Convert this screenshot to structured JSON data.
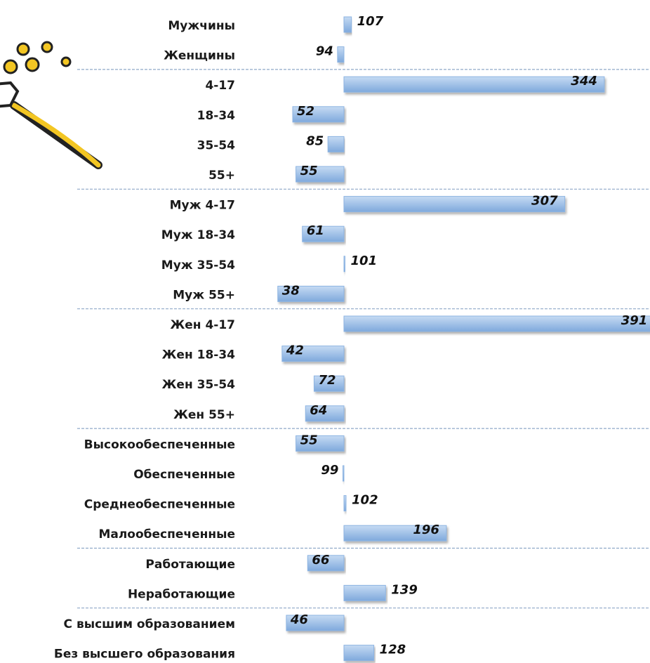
{
  "chart_data": {
    "type": "bar",
    "orientation": "horizontal",
    "baseline": 100,
    "xlim": [
      30,
      400
    ],
    "color": "#8db4e2",
    "categories": [
      "Мужчины",
      "Женщины",
      "4-17",
      "18-34",
      "35-54",
      "55+",
      "Муж 4-17",
      "Муж 18-34",
      "Муж 35-54",
      "Муж 55+",
      "Жен 4-17",
      "Жен 18-34",
      "Жен 35-54",
      "Жен 55+",
      "Высокообеспеченные",
      "Обеспеченные",
      "Среднеобеспеченные",
      "Малообеспеченные",
      "Работающие",
      "Неработающие",
      "С высшим образованием",
      "Без высшего образования"
    ],
    "values": [
      107,
      94,
      344,
      52,
      85,
      55,
      307,
      61,
      101,
      38,
      391,
      42,
      72,
      64,
      55,
      99,
      102,
      196,
      66,
      139,
      46,
      128
    ]
  }
}
